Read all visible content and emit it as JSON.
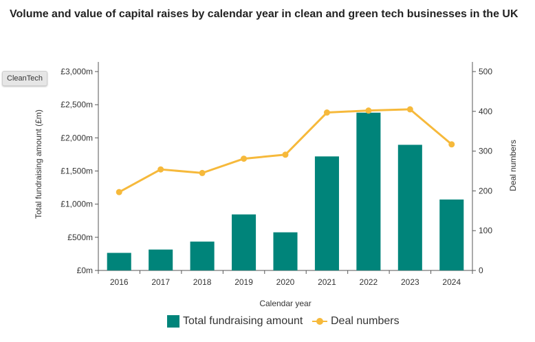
{
  "title": "Volume and value of capital raises by calendar year in clean and green tech businesses in the UK",
  "filter_button": "CleanTech",
  "colors": {
    "bar": "#00847a",
    "line": "#f6b93b",
    "axis": "#333333"
  },
  "chart_data": {
    "type": "bar",
    "categories": [
      "2016",
      "2017",
      "2018",
      "2019",
      "2020",
      "2021",
      "2022",
      "2023",
      "2024"
    ],
    "series": [
      {
        "name": "Total fundraising amount",
        "type": "bar",
        "axis": "left",
        "values": [
          265,
          315,
          435,
          845,
          575,
          1720,
          2380,
          1895,
          1070
        ]
      },
      {
        "name": "Deal numbers",
        "type": "line",
        "axis": "right",
        "values": [
          197,
          254,
          245,
          281,
          291,
          397,
          402,
          405,
          317
        ]
      }
    ],
    "xlabel": "Calendar year",
    "ylabel": "Total fundraising amount (£m)",
    "y2label": "Deal numbers",
    "ylim": [
      0,
      3000
    ],
    "y2lim": [
      0,
      500
    ],
    "yticks": [
      "£0m",
      "£500m",
      "£1,000m",
      "£1,500m",
      "£2,000m",
      "£2,500m",
      "£3,000m"
    ],
    "y2ticks": [
      "0",
      "100",
      "200",
      "300",
      "400",
      "500"
    ],
    "legend_position": "bottom"
  }
}
